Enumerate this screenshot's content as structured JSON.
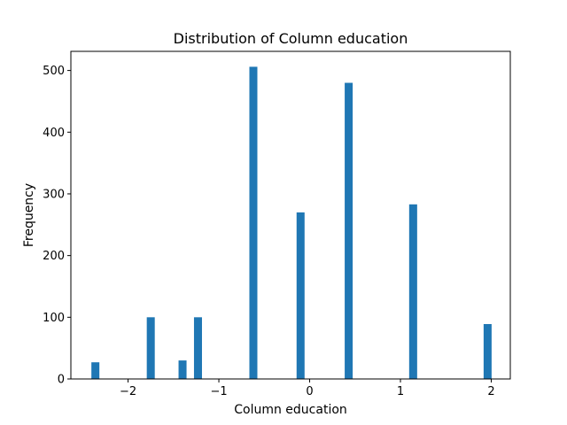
{
  "chart_data": {
    "type": "bar",
    "title": "Distribution of Column education",
    "xlabel": "Column education",
    "ylabel": "Frequency",
    "xlim": [
      -2.63,
      2.21
    ],
    "ylim": [
      0,
      531
    ],
    "bar_color": "#1f77b4",
    "bin_width": 0.088,
    "xticks": [
      {
        "value": -2,
        "label": "−2"
      },
      {
        "value": -1,
        "label": "−1"
      },
      {
        "value": 0,
        "label": "0"
      },
      {
        "value": 1,
        "label": "1"
      },
      {
        "value": 2,
        "label": "2"
      }
    ],
    "yticks": [
      {
        "value": 0,
        "label": "0"
      },
      {
        "value": 100,
        "label": "100"
      },
      {
        "value": 200,
        "label": "200"
      },
      {
        "value": 300,
        "label": "300"
      },
      {
        "value": 400,
        "label": "400"
      },
      {
        "value": 500,
        "label": "500"
      }
    ],
    "bars": [
      {
        "x": -2.36,
        "value": 27
      },
      {
        "x": -1.75,
        "value": 100
      },
      {
        "x": -1.4,
        "value": 30
      },
      {
        "x": -1.23,
        "value": 100
      },
      {
        "x": -0.62,
        "value": 506
      },
      {
        "x": -0.1,
        "value": 270
      },
      {
        "x": 0.43,
        "value": 480
      },
      {
        "x": 1.14,
        "value": 283
      },
      {
        "x": 1.96,
        "value": 89
      }
    ],
    "grid": false,
    "legend": "none"
  }
}
